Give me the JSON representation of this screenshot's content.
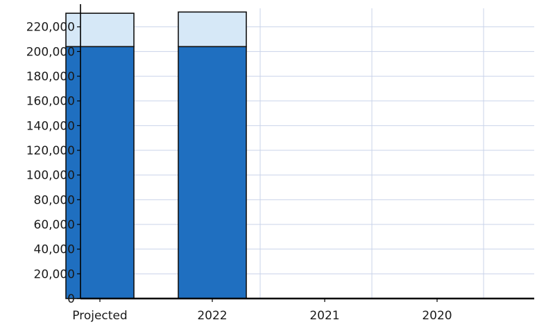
{
  "chart_data": {
    "type": "bar",
    "stacked": true,
    "categories": [
      "Projected",
      "2022",
      "2021",
      "2020"
    ],
    "series": [
      {
        "values": [
          204000,
          204000,
          0,
          0
        ],
        "color": "#1f6fc0"
      },
      {
        "values": [
          27000,
          28000,
          0,
          0
        ],
        "color": "#d6e8f7"
      }
    ],
    "yticks": [
      "0",
      "20,000",
      "40,000",
      "60,000",
      "80,000",
      "100,000",
      "120,000",
      "140,000",
      "160,000",
      "180,000",
      "200,000",
      "220,000"
    ],
    "ylim": [
      0,
      235000
    ],
    "grid": true,
    "grid_color": "#c9d3ea",
    "axis_color": "#000000"
  }
}
